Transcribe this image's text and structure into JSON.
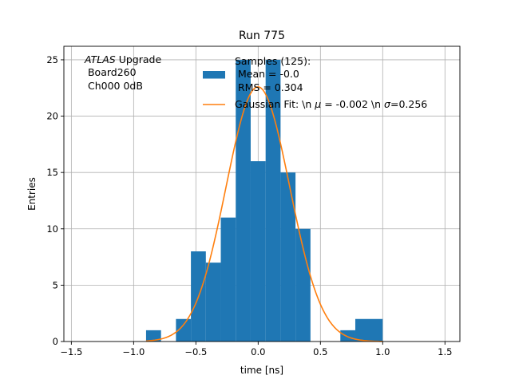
{
  "chart_data": {
    "type": "bar",
    "title": "Run 775",
    "xlabel": "time [ns]",
    "ylabel": "Entries",
    "xlim": [
      -1.56,
      1.62
    ],
    "ylim": [
      0,
      26.2
    ],
    "grid": true,
    "x_ticks": [
      -1.5,
      -1.0,
      -0.5,
      0.0,
      0.5,
      1.0,
      1.5
    ],
    "y_ticks": [
      0,
      5,
      10,
      15,
      20,
      25
    ],
    "annotation": {
      "italic": "ATLAS",
      "rest": " Upgrade",
      "line2": " Board260",
      "line3": " Ch000 0dB"
    },
    "legend": {
      "placement": "top-right",
      "header": "Samples (125):",
      "hist_label_1": " Mean = -0.0",
      "hist_label_2": " RMS = 0.304",
      "fit_label_pre": "Gaussian Fit: \\n ",
      "fit_mu": "μ",
      "fit_mid": " = -0.002 \\n ",
      "fit_sigma": "σ",
      "fit_post": "=0.256"
    },
    "series": [
      {
        "kind": "histogram",
        "color": "#1f77b4",
        "bin_edges": [
          -0.9,
          -0.78,
          -0.66,
          -0.54,
          -0.42,
          -0.3,
          -0.18,
          -0.06,
          0.06,
          0.18,
          0.3,
          0.42,
          0.54,
          0.66,
          0.78,
          0.9,
          1.02
        ],
        "bins": [
          {
            "x0": -0.9,
            "x1": -0.78,
            "count": 1
          },
          {
            "x0": -0.66,
            "x1": -0.54,
            "count": 2
          },
          {
            "x0": -0.54,
            "x1": -0.42,
            "count": 8
          },
          {
            "x0": -0.42,
            "x1": -0.3,
            "count": 7
          },
          {
            "x0": -0.3,
            "x1": -0.18,
            "count": 11
          },
          {
            "x0": -0.18,
            "x1": -0.06,
            "count": 25
          },
          {
            "x0": -0.06,
            "x1": 0.06,
            "count": 16
          },
          {
            "x0": 0.06,
            "x1": 0.18,
            "count": 25
          },
          {
            "x0": 0.18,
            "x1": 0.3,
            "count": 15
          },
          {
            "x0": 0.3,
            "x1": 0.42,
            "count": 10
          },
          {
            "x0": 0.66,
            "x1": 0.78,
            "count": 1
          },
          {
            "x0": 0.78,
            "x1": 1.0,
            "count": 2
          }
        ]
      },
      {
        "kind": "gaussian_fit",
        "color": "#ff7f0e",
        "mu": -0.002,
        "sigma": 0.256,
        "amplitude": 22.6,
        "x_range": [
          -0.9,
          1.0
        ]
      }
    ]
  }
}
